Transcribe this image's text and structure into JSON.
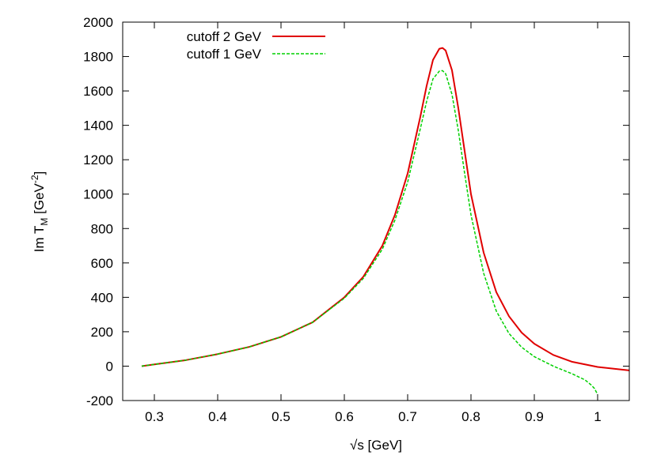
{
  "chart_data": {
    "type": "line",
    "xlabel": "√s [GeV]",
    "ylabel": {
      "main": "Im T",
      "sub": "M",
      "unit_open": " [GeV",
      "sup": "-2",
      "unit_close": "]"
    },
    "xlim": [
      0.25,
      1.05
    ],
    "ylim": [
      -200,
      2000
    ],
    "xticks": [
      0.3,
      0.4,
      0.5,
      0.6,
      0.7,
      0.8,
      0.9,
      1.0
    ],
    "xtick_labels": [
      "0.3",
      "0.4",
      "0.5",
      "0.6",
      "0.7",
      "0.8",
      "0.9",
      "1"
    ],
    "yticks": [
      -200,
      0,
      200,
      400,
      600,
      800,
      1000,
      1200,
      1400,
      1600,
      1800,
      2000
    ],
    "ytick_labels": [
      "-200",
      "0",
      "200",
      "400",
      "600",
      "800",
      "1000",
      "1200",
      "1400",
      "1600",
      "1800",
      "2000"
    ],
    "grid": false,
    "legend_position": "top-left",
    "series": [
      {
        "name": "cutoff 2 GeV",
        "color": "#e00000",
        "style": "solid",
        "x": [
          0.28,
          0.3,
          0.35,
          0.4,
          0.45,
          0.5,
          0.55,
          0.6,
          0.63,
          0.66,
          0.68,
          0.7,
          0.72,
          0.73,
          0.74,
          0.75,
          0.755,
          0.76,
          0.77,
          0.78,
          0.79,
          0.8,
          0.82,
          0.84,
          0.86,
          0.88,
          0.9,
          0.93,
          0.96,
          1.0,
          1.05
        ],
        "y": [
          0,
          10,
          35,
          70,
          112,
          170,
          255,
          400,
          520,
          700,
          880,
          1120,
          1450,
          1630,
          1780,
          1845,
          1850,
          1835,
          1720,
          1500,
          1250,
          1000,
          660,
          430,
          290,
          195,
          130,
          65,
          25,
          -5,
          -25
        ]
      },
      {
        "name": "cutoff 1 GeV",
        "color": "#00d000",
        "style": "dashed",
        "x": [
          0.28,
          0.3,
          0.35,
          0.4,
          0.45,
          0.5,
          0.55,
          0.6,
          0.63,
          0.66,
          0.68,
          0.7,
          0.72,
          0.73,
          0.74,
          0.75,
          0.755,
          0.76,
          0.77,
          0.78,
          0.79,
          0.8,
          0.82,
          0.84,
          0.86,
          0.88,
          0.9,
          0.93,
          0.96,
          0.98,
          0.99,
          0.995,
          1.0
        ],
        "y": [
          0,
          10,
          35,
          70,
          112,
          170,
          255,
          395,
          510,
          680,
          850,
          1070,
          1380,
          1540,
          1670,
          1715,
          1718,
          1700,
          1580,
          1370,
          1120,
          880,
          540,
          320,
          190,
          110,
          55,
          0,
          -45,
          -80,
          -110,
          -130,
          -165
        ]
      }
    ]
  }
}
